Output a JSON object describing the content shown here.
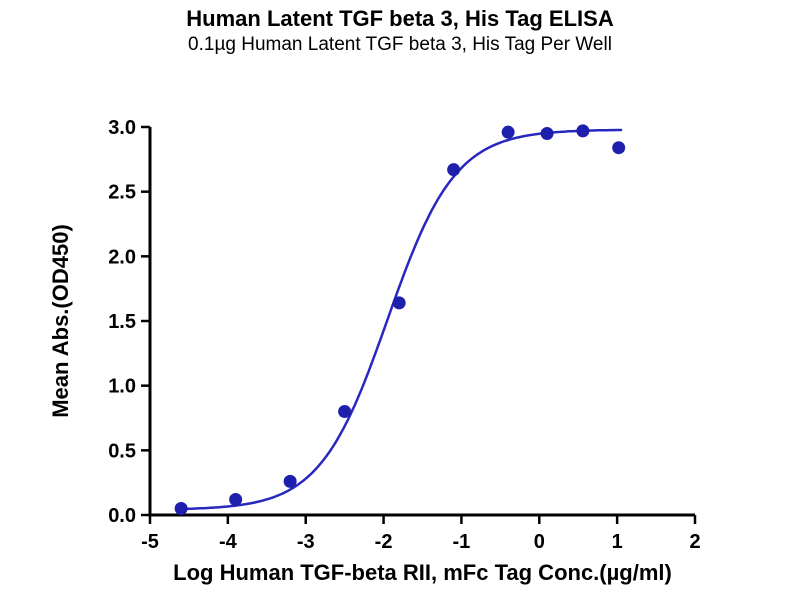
{
  "chart_data": {
    "type": "scatter",
    "title": "Human Latent TGF beta 3, His Tag ELISA",
    "subtitle": "0.1µg Human Latent TGF beta 3, His Tag Per Well",
    "xlabel": "Log Human TGF-beta RII, mFc Tag Conc.(µg/ml)",
    "ylabel": "Mean Abs.(OD450)",
    "xlim": [
      -5,
      2
    ],
    "ylim": [
      0,
      3.0
    ],
    "x_ticks": [
      -5,
      -4,
      -3,
      -2,
      -1,
      0,
      1,
      2
    ],
    "x_tick_labels": [
      "-5",
      "-4",
      "-3",
      "-2",
      "-1",
      "0",
      "1",
      "2"
    ],
    "y_ticks": [
      0.0,
      0.5,
      1.0,
      1.5,
      2.0,
      2.5,
      3.0
    ],
    "y_tick_labels": [
      "0.0",
      "0.5",
      "1.0",
      "1.5",
      "2.0",
      "2.5",
      "3.0"
    ],
    "grid": false,
    "legend": "none",
    "series": [
      {
        "name": "Human TGF-beta RII, mFc Tag",
        "points": [
          {
            "x": -4.6,
            "y": 0.05
          },
          {
            "x": -3.9,
            "y": 0.12
          },
          {
            "x": -3.2,
            "y": 0.26
          },
          {
            "x": -2.5,
            "y": 0.8
          },
          {
            "x": -1.8,
            "y": 1.64
          },
          {
            "x": -1.1,
            "y": 2.67
          },
          {
            "x": -0.4,
            "y": 2.96
          },
          {
            "x": 0.1,
            "y": 2.95
          },
          {
            "x": 0.56,
            "y": 2.97
          },
          {
            "x": 1.02,
            "y": 2.84
          }
        ]
      }
    ],
    "fit_curve": {
      "model": "4PL",
      "bottom": 0.04,
      "top": 2.98,
      "logEC50": -1.95,
      "hill": 1.0,
      "x_start": -4.62,
      "x_end": 1.05
    },
    "colors": {
      "points": "#1f1fad",
      "curve": "#2828c0",
      "axis": "#000000"
    }
  }
}
